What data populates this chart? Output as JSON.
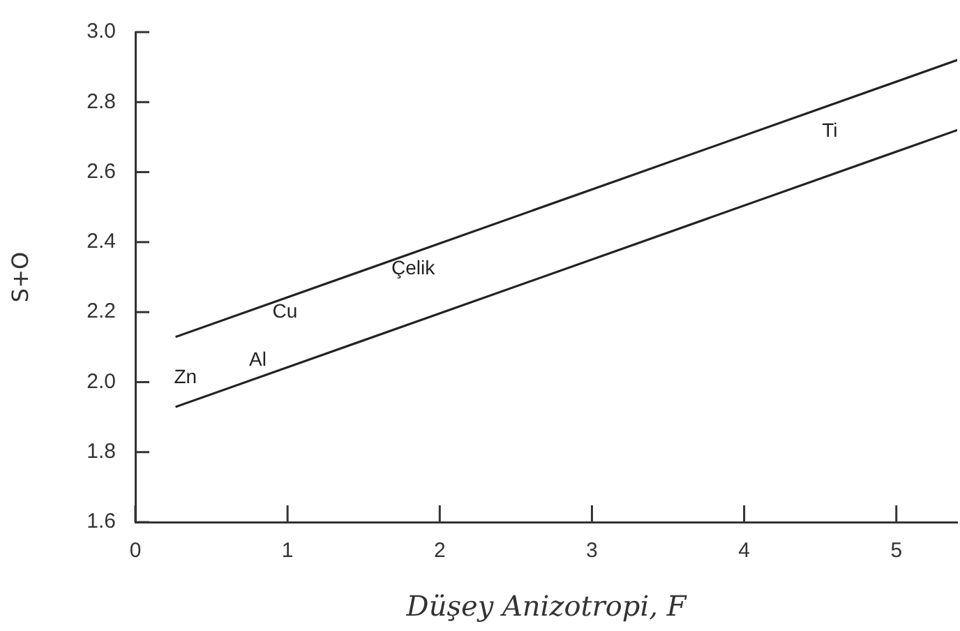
{
  "chart_data": {
    "type": "line",
    "xlabel": "Düşey Anizotropi, F",
    "ylabel": "S+O",
    "xlim": [
      0,
      5.4
    ],
    "xticks": [
      0,
      1,
      2,
      3,
      4,
      5
    ],
    "ylim": [
      1.6,
      3.0
    ],
    "yticks": [
      1.6,
      1.8,
      {
        "value": 2,
        "label": "2.0"
      },
      2.2,
      2.4,
      2.6,
      2.8,
      {
        "value": 3,
        "label": "3.0"
      }
    ],
    "x": [
      0.27,
      5.4
    ],
    "series": [
      {
        "color": "#222222",
        "values": [
          2.13,
          2.92
        ]
      },
      {
        "color": "#222222",
        "values": [
          1.93,
          2.72
        ]
      }
    ],
    "annotations": [
      "Zn",
      "Cu",
      "Al",
      "Çelik",
      "Ti"
    ],
    "grid": false,
    "legend": false,
    "marker": "none",
    "line_style": "solid"
  }
}
